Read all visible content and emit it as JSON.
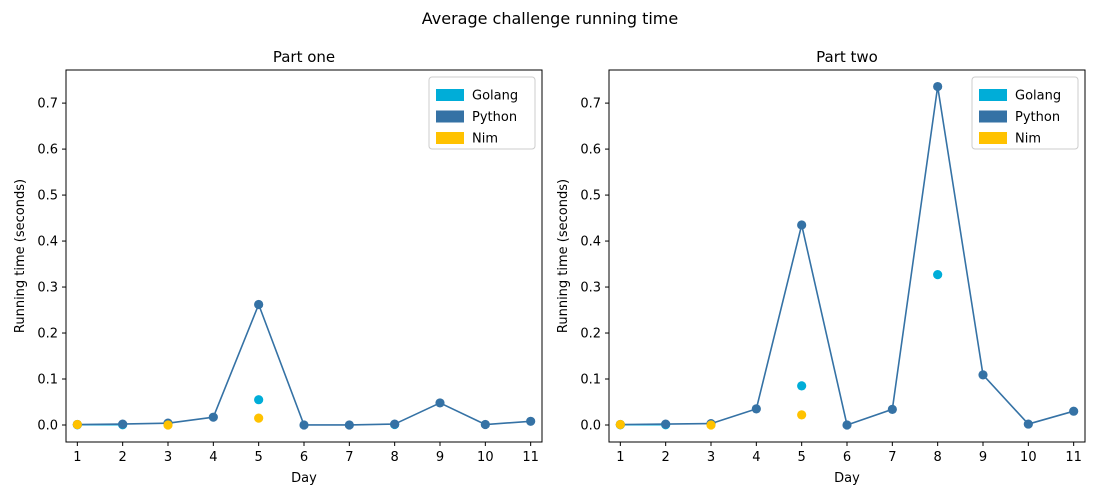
{
  "figure": {
    "title": "Average challenge running time"
  },
  "colors": {
    "Golang": "#00add8",
    "Python": "#3572a5",
    "Nim": "#ffc200"
  },
  "chart_data": [
    {
      "type": "line",
      "title": "Part one",
      "xlabel": "Day",
      "ylabel": "Running time (seconds)",
      "xlim": [
        0.75,
        11.25
      ],
      "ylim": [
        -0.037,
        0.772
      ],
      "xticks": [
        1,
        2,
        3,
        4,
        5,
        6,
        7,
        8,
        9,
        10,
        11
      ],
      "yticks": [
        0.0,
        0.1,
        0.2,
        0.3,
        0.4,
        0.5,
        0.6,
        0.7
      ],
      "yticklabels": [
        "0.0",
        "0.1",
        "0.2",
        "0.3",
        "0.4",
        "0.5",
        "0.6",
        "0.7"
      ],
      "legend": {
        "position": "top-right",
        "entries": [
          "Golang",
          "Python",
          "Nim"
        ]
      },
      "series": [
        {
          "name": "Golang",
          "x": [
            1,
            2,
            5,
            8
          ],
          "y": [
            0.0005,
            0.0005,
            0.055,
            0.001
          ],
          "line": [
            1,
            2
          ]
        },
        {
          "name": "Python",
          "x": [
            1,
            2,
            3,
            4,
            5,
            6,
            7,
            8,
            9,
            10,
            11
          ],
          "y": [
            0.001,
            0.002,
            0.004,
            0.017,
            0.262,
            0.0,
            0.0,
            0.002,
            0.048,
            0.001,
            0.008
          ],
          "line": [
            1,
            2,
            3,
            4,
            5,
            6,
            7,
            8,
            9,
            10,
            11
          ]
        },
        {
          "name": "Nim",
          "x": [
            1,
            3,
            5
          ],
          "y": [
            0.001,
            0.0,
            0.015
          ],
          "line": []
        }
      ]
    },
    {
      "type": "line",
      "title": "Part two",
      "xlabel": "Day",
      "ylabel": "Running time (seconds)",
      "xlim": [
        0.75,
        11.25
      ],
      "ylim": [
        -0.037,
        0.772
      ],
      "xticks": [
        1,
        2,
        3,
        4,
        5,
        6,
        7,
        8,
        9,
        10,
        11
      ],
      "yticks": [
        0.0,
        0.1,
        0.2,
        0.3,
        0.4,
        0.5,
        0.6,
        0.7
      ],
      "yticklabels": [
        "0.0",
        "0.1",
        "0.2",
        "0.3",
        "0.4",
        "0.5",
        "0.6",
        "0.7"
      ],
      "legend": {
        "position": "top-right",
        "entries": [
          "Golang",
          "Python",
          "Nim"
        ]
      },
      "series": [
        {
          "name": "Golang",
          "x": [
            1,
            2,
            5,
            8
          ],
          "y": [
            0.0005,
            0.0005,
            0.085,
            0.327
          ],
          "line": [
            1,
            2
          ]
        },
        {
          "name": "Python",
          "x": [
            1,
            2,
            3,
            4,
            5,
            6,
            7,
            8,
            9,
            10,
            11
          ],
          "y": [
            0.001,
            0.002,
            0.003,
            0.035,
            0.435,
            0.0,
            0.034,
            0.736,
            0.109,
            0.002,
            0.03
          ],
          "line": [
            1,
            2,
            3,
            4,
            5,
            6,
            7,
            8,
            9,
            10,
            11
          ]
        },
        {
          "name": "Nim",
          "x": [
            1,
            3,
            5
          ],
          "y": [
            0.001,
            0.0,
            0.022
          ],
          "line": []
        }
      ]
    }
  ]
}
